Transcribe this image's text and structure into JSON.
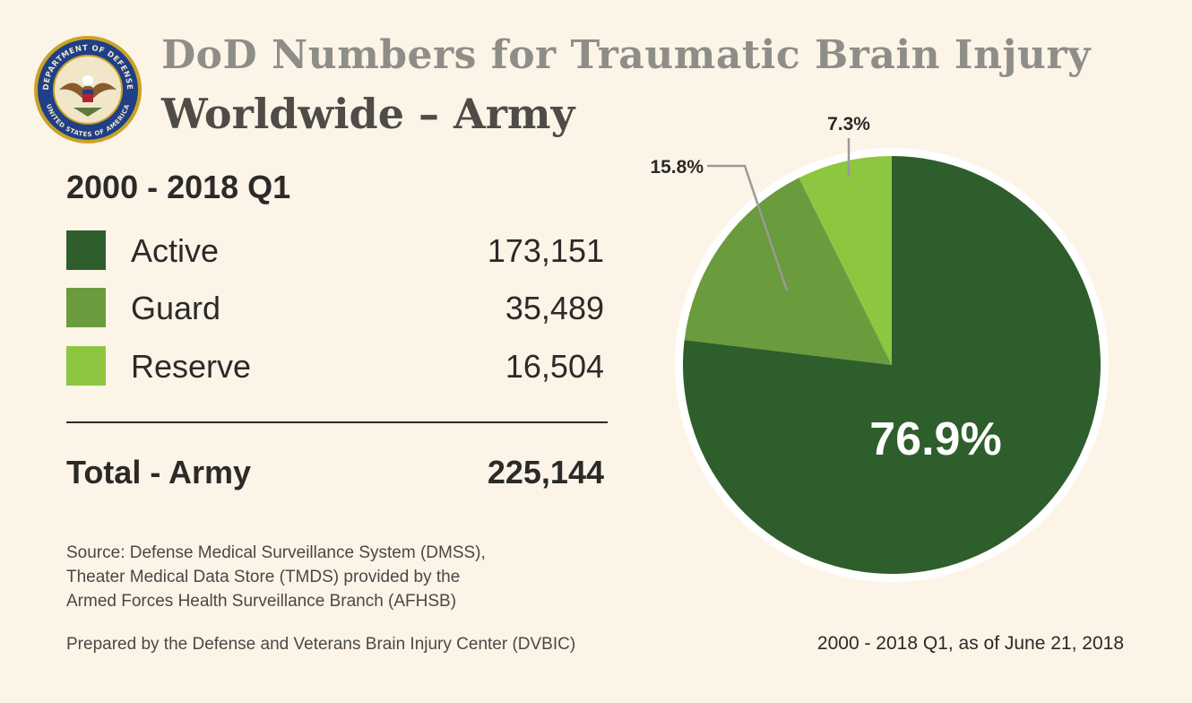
{
  "header": {
    "title_line1": "DoD Numbers for Traumatic Brain Injury",
    "title_line2": "Worldwide – Army",
    "seal": {
      "icon": "dod-seal-icon",
      "text_top": "DEPARTMENT OF DEFENSE",
      "text_bottom": "UNITED STATES OF AMERICA"
    }
  },
  "period": "2000 - 2018 Q1",
  "legend": [
    {
      "label": "Active",
      "value": "173,151",
      "color": "#2e5e2b"
    },
    {
      "label": "Guard",
      "value": "35,489",
      "color": "#6a9b3c"
    },
    {
      "label": "Reserve",
      "value": "16,504",
      "color": "#8dc63f"
    }
  ],
  "total": {
    "label": "Total - Army",
    "value": "225,144"
  },
  "source": [
    "Source: Defense Medical Surveillance System (DMSS),",
    "Theater Medical Data Store (TMDS) provided by the",
    "Armed Forces Health Surveillance Branch (AFHSB)"
  ],
  "prepared_by": "Prepared by the Defense and Veterans Brain Injury Center (DVBIC)",
  "as_of": "2000 - 2018 Q1, as of June 21, 2018",
  "chart_data": {
    "type": "pie",
    "title": "",
    "slices": [
      {
        "name": "Active",
        "value": 173151,
        "percent": 76.9,
        "label": "76.9%",
        "color": "#2e5e2b"
      },
      {
        "name": "Guard",
        "value": 35489,
        "percent": 15.8,
        "label": "15.8%",
        "color": "#6a9b3c"
      },
      {
        "name": "Reserve",
        "value": 16504,
        "percent": 7.3,
        "label": "7.3%",
        "color": "#8dc63f"
      }
    ],
    "start": "12 o'clock",
    "direction": "clockwise"
  }
}
